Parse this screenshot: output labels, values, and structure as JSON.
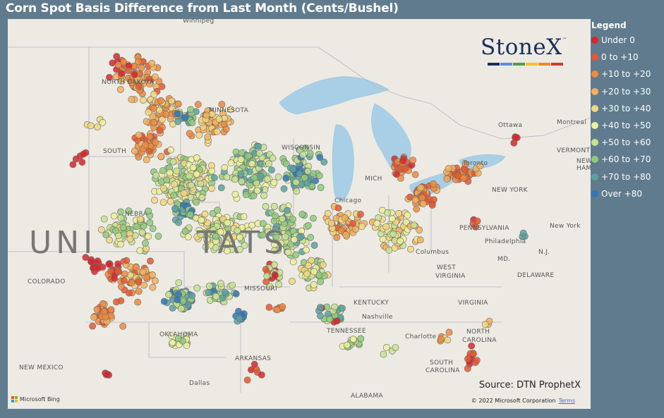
{
  "title": "Corn Spot Basis Difference from Last Month (Cents/Bushel)",
  "legend": {
    "title": "Legend",
    "items": [
      {
        "label": "Under 0",
        "color": "#d9262b"
      },
      {
        "label": "0 to +10",
        "color": "#e8572d"
      },
      {
        "label": "+10 to +20",
        "color": "#f08a3c"
      },
      {
        "label": "+20 to +30",
        "color": "#f5b05a"
      },
      {
        "label": "+30 to +40",
        "color": "#f3d67e"
      },
      {
        "label": "+40 to +50",
        "color": "#eef09a"
      },
      {
        "label": "+50 to +60",
        "color": "#c8e390"
      },
      {
        "label": "+60 to +70",
        "color": "#8fcb7c"
      },
      {
        "label": "+70 to +80",
        "color": "#5ba3a0"
      },
      {
        "label": "Over +80",
        "color": "#2f78b8"
      }
    ]
  },
  "logo": {
    "text": "StoneX",
    "tm": "™",
    "bar_colors": [
      "#1a2e5a",
      "#5b8ed6",
      "#4f9e4a",
      "#f2c230",
      "#e88a2a",
      "#d03a2f"
    ]
  },
  "source": "Source: DTN ProphetX",
  "copyright": "© 2022 Microsoft Corporation",
  "terms": "Terms",
  "bing": "Microsoft Bing",
  "map_labels": [
    {
      "text": "Winnipeg"
    },
    {
      "text": "NORTH DAKOTA"
    },
    {
      "text": "MINNESOTA"
    },
    {
      "text": "SOUTH"
    },
    {
      "text": "WISCONSIN"
    },
    {
      "text": "MICH"
    },
    {
      "text": "Toronto"
    },
    {
      "text": "Ottawa"
    },
    {
      "text": "Montreal"
    },
    {
      "text": "VERMONT"
    },
    {
      "text": "NEW HAMPSH"
    },
    {
      "text": "NEW YORK"
    },
    {
      "text": "Chicago"
    },
    {
      "text": "NEBRA"
    },
    {
      "text": "PENNSYLVANIA"
    },
    {
      "text": "New York"
    },
    {
      "text": "Philadelphia"
    },
    {
      "text": "N.J."
    },
    {
      "text": "Columbus"
    },
    {
      "text": "MD."
    },
    {
      "text": "COLORADO"
    },
    {
      "text": "WEST"
    },
    {
      "text": "VIRGINIA"
    },
    {
      "text": "DELAWARE"
    },
    {
      "text": "MISSOURI"
    },
    {
      "text": "KENTUCKY"
    },
    {
      "text": "VIRGINIA"
    },
    {
      "text": "Nashville"
    },
    {
      "text": "OKLAHOMA"
    },
    {
      "text": "TENNESSEE"
    },
    {
      "text": "NORTH"
    },
    {
      "text": "CAROLINA"
    },
    {
      "text": "Charlotte"
    },
    {
      "text": "NEW MEXICO"
    },
    {
      "text": "ARKANSAS"
    },
    {
      "text": "SOUTH"
    },
    {
      "text": "CAROLINA"
    },
    {
      "text": "Dallas"
    },
    {
      "text": "ALABAMA"
    }
  ],
  "country_label_left": "UNI",
  "country_label_right": "TATS"
}
